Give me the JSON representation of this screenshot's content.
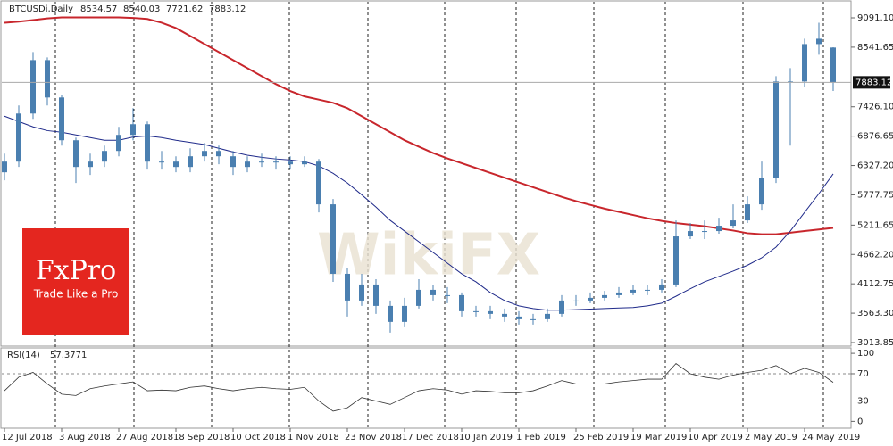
{
  "chart_data": [
    {
      "type": "candlestick",
      "title": "BTCUSDi,Daily",
      "color": "#4a7fb0",
      "categories": [
        "12 Jul 2018",
        null,
        null,
        null,
        "3 Aug 2018",
        null,
        null,
        null,
        "27 Aug 2018",
        null,
        null,
        null,
        "18 Sep 2018",
        null,
        null,
        null,
        "10 Oct 2018",
        null,
        null,
        null,
        "1 Nov 2018",
        null,
        null,
        null,
        "23 Nov 2018",
        null,
        null,
        null,
        "17 Dec 2018",
        null,
        null,
        null,
        "10 Jan 2019",
        null,
        null,
        null,
        "1 Feb 2019",
        null,
        null,
        null,
        "25 Feb 2019",
        null,
        null,
        null,
        "19 Mar 2019",
        null,
        null,
        null,
        "10 Apr 2019",
        null,
        null,
        null,
        "2 May 2019",
        null,
        null,
        null,
        "24 May 2019",
        null,
        null
      ],
      "open": [
        6200,
        6400,
        7300,
        8300,
        7600,
        6800,
        6300,
        6400,
        6600,
        6900,
        7100,
        6400,
        6400,
        6300,
        6500,
        6600,
        6500,
        6300,
        6400,
        6400,
        6400,
        6350,
        6400,
        5600,
        4300,
        3800,
        4100,
        3700,
        3400,
        3700,
        4000,
        3900,
        3900,
        3600,
        3600,
        3550,
        3500,
        3450,
        3450,
        3550,
        3800,
        3800,
        3850,
        3900,
        3950,
        4000,
        4000,
        4100,
        5000,
        5100,
        5100,
        5200,
        5300,
        5600,
        6100,
        7900,
        7900,
        8600,
        8534.57
      ],
      "high": [
        6550,
        7450,
        8450,
        8350,
        7650,
        6850,
        6550,
        6700,
        7050,
        7400,
        7150,
        6600,
        6500,
        6650,
        6750,
        6700,
        6600,
        6500,
        6550,
        6500,
        6500,
        6500,
        6450,
        5700,
        4400,
        4300,
        4200,
        3800,
        3850,
        4200,
        4100,
        4050,
        3950,
        3700,
        3700,
        3650,
        3600,
        3550,
        3650,
        3900,
        3900,
        3950,
        3980,
        4050,
        4100,
        4100,
        4200,
        5300,
        5250,
        5300,
        5350,
        5600,
        5750,
        6400,
        8000,
        8150,
        8700,
        9000,
        8540.03
      ],
      "low": [
        6050,
        6300,
        7200,
        7450,
        6700,
        6000,
        6150,
        6300,
        6500,
        6800,
        6250,
        6250,
        6200,
        6200,
        6400,
        6350,
        6150,
        6200,
        6300,
        6250,
        6250,
        6300,
        5450,
        4150,
        3500,
        3700,
        3550,
        3200,
        3300,
        3650,
        3800,
        3750,
        3500,
        3500,
        3450,
        3400,
        3350,
        3350,
        3400,
        3500,
        3700,
        3750,
        3800,
        3850,
        3900,
        3900,
        3950,
        4050,
        4950,
        4950,
        5050,
        5150,
        5250,
        5500,
        6000,
        6700,
        7800,
        8400,
        7721.62
      ],
      "close": [
        6400,
        7300,
        8300,
        7600,
        6800,
        6300,
        6400,
        6600,
        6900,
        7100,
        6400,
        6400,
        6300,
        6500,
        6600,
        6500,
        6300,
        6400,
        6400,
        6400,
        6350,
        6400,
        5600,
        4300,
        3800,
        4100,
        3700,
        3400,
        3700,
        4000,
        3900,
        3900,
        3600,
        3600,
        3550,
        3500,
        3450,
        3450,
        3550,
        3800,
        3800,
        3850,
        3900,
        3950,
        4000,
        4000,
        4100,
        5000,
        5100,
        5100,
        5200,
        5300,
        5600,
        6100,
        7900,
        7900,
        8600,
        8700,
        7883.12
      ],
      "overlays": [
        {
          "color": "#c8262c",
          "values": [
            9000,
            9020,
            9050,
            9080,
            9100,
            9100,
            9100,
            9100,
            9100,
            9090,
            9070,
            9000,
            8900,
            8750,
            8600,
            8450,
            8300,
            8150,
            8000,
            7850,
            7720,
            7620,
            7560,
            7500,
            7400,
            7250,
            7100,
            6950,
            6800,
            6680,
            6560,
            6460,
            6370,
            6280,
            6190,
            6100,
            6010,
            5920,
            5830,
            5740,
            5660,
            5590,
            5520,
            5460,
            5400,
            5340,
            5290,
            5250,
            5220,
            5190,
            5150,
            5110,
            5060,
            5040,
            5040,
            5070,
            5100,
            5130,
            5160
          ]
        },
        {
          "color": "#1f2a8a",
          "values": [
            7250,
            7150,
            7050,
            6980,
            6950,
            6900,
            6850,
            6800,
            6800,
            6860,
            6880,
            6850,
            6800,
            6760,
            6720,
            6650,
            6580,
            6520,
            6480,
            6450,
            6430,
            6400,
            6320,
            6180,
            6000,
            5780,
            5550,
            5300,
            5100,
            4900,
            4700,
            4500,
            4300,
            4150,
            3950,
            3800,
            3700,
            3650,
            3620,
            3620,
            3630,
            3640,
            3650,
            3660,
            3670,
            3700,
            3750,
            3880,
            4020,
            4150,
            4250,
            4350,
            4460,
            4600,
            4800,
            5100,
            5450,
            5800,
            6170
          ]
        }
      ],
      "ylim": [
        2947,
        9425
      ],
      "yticks": [
        {
          "value": 9091.1,
          "label": "9091.10"
        },
        8541.65,
        {
          "value": 7426.1,
          "label": "7426.10"
        },
        6876.65,
        {
          "value": 6327.2,
          "label": "6327.20"
        },
        5777.75,
        5211.65,
        {
          "value": 4662.2,
          "label": "4662.20"
        },
        4112.75,
        {
          "value": 3563.3,
          "label": "3563.30"
        },
        3013.85
      ],
      "watermark": {
        "brand": "FxPro",
        "slogan": "Trade Like a Pro",
        "overlay": "WikiFX"
      }
    },
    {
      "type": "line",
      "title": "RSI(14)",
      "color": "#333333",
      "values": [
        45,
        65,
        72,
        55,
        40,
        38,
        48,
        52,
        55,
        58,
        45,
        46,
        45,
        50,
        52,
        48,
        45,
        48,
        50,
        48,
        47,
        50,
        30,
        15,
        20,
        35,
        30,
        25,
        35,
        45,
        48,
        46,
        40,
        45,
        44,
        42,
        42,
        45,
        52,
        60,
        55,
        55,
        55,
        58,
        60,
        62,
        62,
        85,
        70,
        65,
        62,
        68,
        72,
        75,
        82,
        70,
        78,
        72,
        57.3771
      ],
      "ylim": [
        -10,
        108
      ],
      "yticks": [
        0,
        30,
        70,
        100
      ],
      "levels": [
        30,
        70
      ]
    }
  ]
}
